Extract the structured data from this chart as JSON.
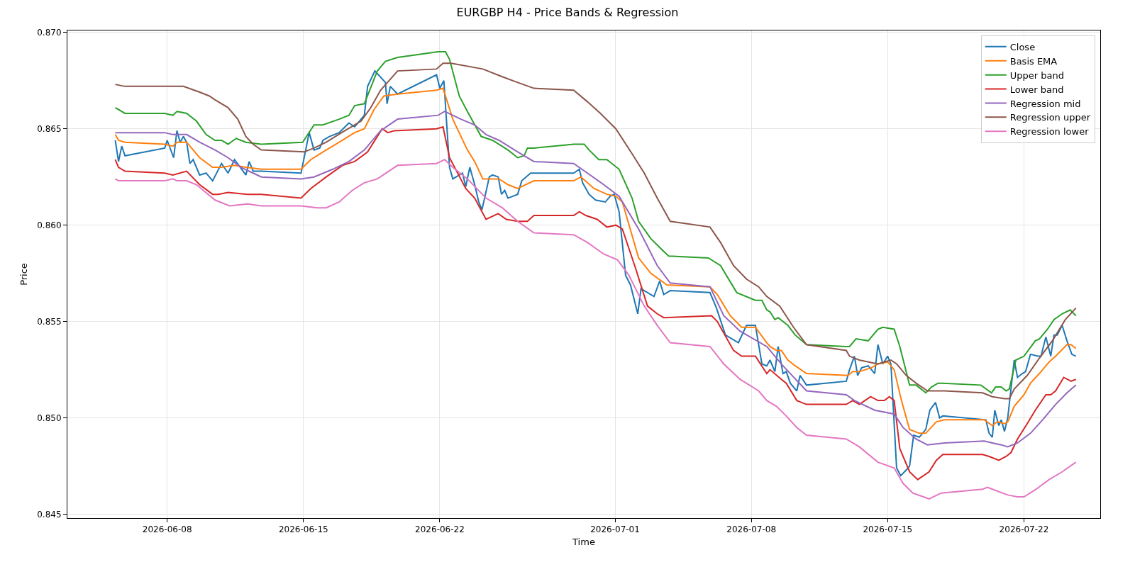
{
  "chart_data": {
    "type": "line",
    "title": "EURGBP H4 - Price Bands & Regression",
    "xlabel": "Time",
    "ylabel": "Price",
    "xlim": [
      "2026-06-02T21:00",
      "2026-07-25T22:00"
    ],
    "xticks": [
      "2026-06-08",
      "2026-06-15",
      "2026-06-22",
      "2026-07-01",
      "2026-07-08",
      "2026-07-15",
      "2026-07-22"
    ],
    "ylim": [
      0.8448,
      0.8701
    ],
    "yticks": [
      {
        "value": 0.845,
        "label": "0.845"
      },
      {
        "value": 0.85,
        "label": "0.850"
      },
      {
        "value": 0.855,
        "label": "0.855"
      },
      {
        "value": 0.86,
        "label": "0.860"
      },
      {
        "value": 0.865,
        "label": "0.865"
      },
      {
        "value": 0.87,
        "label": "0.870"
      }
    ],
    "grid": true,
    "legend": "top right",
    "series": [
      {
        "name": "Close",
        "color": "#1f77b4",
        "x": [
          "2026-06-05T08:00",
          "2026-06-05T12:00",
          "2026-06-05T16:00",
          "2026-06-05T20:00",
          "2026-06-07T21:00",
          "2026-06-08T00:00",
          "2026-06-08T08:00",
          "2026-06-08T12:00",
          "2026-06-08T16:00",
          "2026-06-08T20:00",
          "2026-06-09T00:00",
          "2026-06-09T04:00",
          "2026-06-09T08:00",
          "2026-06-09T16:00",
          "2026-06-10T00:00",
          "2026-06-10T08:00",
          "2026-06-10T19:00",
          "2026-06-11T03:00",
          "2026-06-11T11:00",
          "2026-06-12T01:00",
          "2026-06-12T05:00",
          "2026-06-12T10:00",
          "2026-06-12T20:00",
          "2026-06-14T21:00",
          "2026-06-15T07:00",
          "2026-06-15T13:00",
          "2026-06-15T20:00",
          "2026-06-16T00:00",
          "2026-06-16T08:00",
          "2026-06-16T20:00",
          "2026-06-17T08:00",
          "2026-06-17T15:00",
          "2026-06-18T03:00",
          "2026-06-18T07:00",
          "2026-06-18T16:00",
          "2026-06-19T05:00",
          "2026-06-19T07:00",
          "2026-06-19T11:00",
          "2026-06-19T20:00",
          "2026-06-21T20:00",
          "2026-06-22T00:00",
          "2026-06-22T05:00",
          "2026-06-22T12:00",
          "2026-06-22T16:00",
          "2026-06-23T04:00",
          "2026-06-23T08:00",
          "2026-06-23T13:00",
          "2026-06-23T19:00",
          "2026-06-24T00:00",
          "2026-06-24T04:00",
          "2026-06-24T13:00",
          "2026-06-24T17:00",
          "2026-06-25T00:00",
          "2026-06-25T04:00",
          "2026-06-25T08:00",
          "2026-06-25T12:00",
          "2026-06-26T00:00",
          "2026-06-26T05:00",
          "2026-06-26T16:00",
          "2026-06-28T21:00",
          "2026-06-29T04:00",
          "2026-06-29T08:00",
          "2026-06-29T16:00",
          "2026-06-30T00:00",
          "2026-06-30T12:00",
          "2026-06-30T18:00",
          "2026-06-30T23:00",
          "2026-07-01T05:00",
          "2026-07-01T13:00",
          "2026-07-01T19:00",
          "2026-07-02T04:00",
          "2026-07-02T08:00",
          "2026-07-03T00:00",
          "2026-07-03T07:00",
          "2026-07-03T12:00",
          "2026-07-03T20:00",
          "2026-07-05T21:00",
          "2026-07-06T05:00",
          "2026-07-06T16:00",
          "2026-07-07T08:00",
          "2026-07-07T18:00",
          "2026-07-08T05:00",
          "2026-07-08T13:00",
          "2026-07-08T19:00",
          "2026-07-08T23:00",
          "2026-07-09T05:00",
          "2026-07-09T09:00",
          "2026-07-09T15:00",
          "2026-07-09T19:00",
          "2026-07-10T00:00",
          "2026-07-10T08:00",
          "2026-07-10T12:00",
          "2026-07-10T20:00",
          "2026-07-12T21:00",
          "2026-07-13T01:00",
          "2026-07-13T07:00",
          "2026-07-13T11:00",
          "2026-07-13T16:00",
          "2026-07-14T00:00",
          "2026-07-14T08:00",
          "2026-07-14T12:00",
          "2026-07-14T18:00",
          "2026-07-15T00:00",
          "2026-07-15T04:00",
          "2026-07-15T11:00",
          "2026-07-15T16:00",
          "2026-07-15T23:00",
          "2026-07-16T03:00",
          "2026-07-16T08:00",
          "2026-07-16T15:00",
          "2026-07-16T23:00",
          "2026-07-17T04:00",
          "2026-07-17T11:00",
          "2026-07-17T16:00",
          "2026-07-17T20:00",
          "2026-07-20T01:00",
          "2026-07-20T05:00",
          "2026-07-20T09:00",
          "2026-07-20T12:00",
          "2026-07-20T17:00",
          "2026-07-20T20:00",
          "2026-07-21T00:00",
          "2026-07-21T04:00",
          "2026-07-21T12:00",
          "2026-07-21T16:00",
          "2026-07-21T22:00",
          "2026-07-22T02:00",
          "2026-07-22T08:00",
          "2026-07-22T17:00",
          "2026-07-22T21:00",
          "2026-07-23T03:00",
          "2026-07-23T09:00",
          "2026-07-23T13:00",
          "2026-07-23T17:00",
          "2026-07-23T23:00",
          "2026-07-24T05:00",
          "2026-07-24T11:00",
          "2026-07-24T16:00"
        ],
        "values": [
          0.8644,
          0.8633,
          0.8641,
          0.8636,
          0.864,
          0.8644,
          0.8635,
          0.8649,
          0.8643,
          0.8646,
          0.8643,
          0.8632,
          0.8634,
          0.8626,
          0.8627,
          0.8623,
          0.8632,
          0.8627,
          0.8634,
          0.8626,
          0.8633,
          0.8628,
          0.8628,
          0.8627,
          0.8648,
          0.8639,
          0.864,
          0.8644,
          0.8646,
          0.8648,
          0.8653,
          0.8651,
          0.8657,
          0.8672,
          0.868,
          0.8674,
          0.8663,
          0.8672,
          0.8668,
          0.8678,
          0.8671,
          0.8675,
          0.863,
          0.8624,
          0.8627,
          0.862,
          0.863,
          0.8621,
          0.8612,
          0.8608,
          0.8625,
          0.8626,
          0.8625,
          0.8616,
          0.8618,
          0.8614,
          0.8616,
          0.8623,
          0.8627,
          0.8627,
          0.8629,
          0.8622,
          0.8616,
          0.8613,
          0.8612,
          0.8615,
          0.8616,
          0.8607,
          0.8574,
          0.8569,
          0.8554,
          0.8567,
          0.8563,
          0.8571,
          0.8564,
          0.8566,
          0.8565,
          0.8557,
          0.8543,
          0.8539,
          0.8548,
          0.8548,
          0.8528,
          0.8527,
          0.853,
          0.8524,
          0.8537,
          0.8523,
          0.8524,
          0.8518,
          0.8514,
          0.8522,
          0.8517,
          0.8519,
          0.8525,
          0.8532,
          0.8522,
          0.8526,
          0.8527,
          0.8523,
          0.8538,
          0.8528,
          0.8532,
          0.8528,
          0.8474,
          0.847,
          0.8473,
          0.8475,
          0.8491,
          0.849,
          0.8494,
          0.8504,
          0.8508,
          0.85,
          0.8501,
          0.8499,
          0.8492,
          0.849,
          0.8504,
          0.8496,
          0.8499,
          0.8493,
          0.85,
          0.853,
          0.8521,
          0.8523,
          0.8524,
          0.8533,
          0.8532,
          0.8532,
          0.8542,
          0.8532,
          0.8543,
          0.8543,
          0.8548,
          0.854,
          0.8533,
          0.8532
        ]
      },
      {
        "name": "Basis EMA",
        "color": "#ff7f0e",
        "x": [
          "2026-06-05T08:00",
          "2026-06-05T12:00",
          "2026-06-05T20:00",
          "2026-06-07T21:00",
          "2026-06-08T07:00",
          "2026-06-08T12:00",
          "2026-06-09T00:00",
          "2026-06-09T16:00",
          "2026-06-10T08:00",
          "2026-06-10T19:00",
          "2026-06-11T11:00",
          "2026-06-12T01:00",
          "2026-06-12T20:00",
          "2026-06-14T21:00",
          "2026-06-15T09:00",
          "2026-06-16T00:00",
          "2026-06-16T20:00",
          "2026-06-17T15:00",
          "2026-06-18T03:00",
          "2026-06-18T15:00",
          "2026-06-19T03:00",
          "2026-06-19T20:00",
          "2026-06-21T20:00",
          "2026-06-22T04:00",
          "2026-06-22T16:00",
          "2026-06-23T10:00",
          "2026-06-23T19:00",
          "2026-06-24T05:00",
          "2026-06-25T01:00",
          "2026-06-25T12:00",
          "2026-06-26T00:00",
          "2026-06-26T20:00",
          "2026-06-28T21:00",
          "2026-06-29T06:00",
          "2026-06-29T22:00",
          "2026-06-30T14:00",
          "2026-07-01T01:00",
          "2026-07-01T09:00",
          "2026-07-02T05:00",
          "2026-07-02T20:00",
          "2026-07-03T16:00",
          "2026-07-05T21:00",
          "2026-07-06T06:00",
          "2026-07-06T22:00",
          "2026-07-07T12:00",
          "2026-07-08T05:00",
          "2026-07-08T19:00",
          "2026-07-08T23:00",
          "2026-07-09T07:00",
          "2026-07-09T13:00",
          "2026-07-09T21:00",
          "2026-07-10T06:00",
          "2026-07-10T20:00",
          "2026-07-12T23:00",
          "2026-07-13T05:00",
          "2026-07-13T13:00",
          "2026-07-14T04:00",
          "2026-07-14T12:00",
          "2026-07-15T00:00",
          "2026-07-15T08:00",
          "2026-07-15T17:00",
          "2026-07-16T03:00",
          "2026-07-16T15:00",
          "2026-07-16T23:00",
          "2026-07-17T12:00",
          "2026-07-17T22:00",
          "2026-07-19T23:00",
          "2026-07-20T09:00",
          "2026-07-20T15:00",
          "2026-07-21T00:00",
          "2026-07-21T04:00",
          "2026-07-21T12:00",
          "2026-07-22T00:00",
          "2026-07-22T08:00",
          "2026-07-22T19:00",
          "2026-07-23T07:00",
          "2026-07-23T15:00",
          "2026-07-24T05:00",
          "2026-07-24T10:00",
          "2026-07-24T16:00"
        ],
        "values": [
          0.8647,
          0.8644,
          0.8643,
          0.8642,
          0.8641,
          0.8643,
          0.8643,
          0.8635,
          0.863,
          0.863,
          0.8631,
          0.863,
          0.8629,
          0.8629,
          0.8634,
          0.8638,
          0.8643,
          0.8648,
          0.865,
          0.866,
          0.8667,
          0.8668,
          0.867,
          0.8671,
          0.8655,
          0.8639,
          0.8633,
          0.8624,
          0.8624,
          0.8621,
          0.8619,
          0.8623,
          0.8623,
          0.8625,
          0.8619,
          0.8616,
          0.8615,
          0.8612,
          0.8583,
          0.8575,
          0.8569,
          0.8568,
          0.8564,
          0.8553,
          0.8547,
          0.8547,
          0.8539,
          0.8537,
          0.8535,
          0.8535,
          0.853,
          0.8527,
          0.8523,
          0.8522,
          0.8524,
          0.8524,
          0.8526,
          0.8528,
          0.8529,
          0.8525,
          0.8509,
          0.8494,
          0.8492,
          0.8492,
          0.8498,
          0.8499,
          0.8499,
          0.8496,
          0.8498,
          0.8497,
          0.8498,
          0.8506,
          0.8512,
          0.8518,
          0.8523,
          0.8529,
          0.8532,
          0.8538,
          0.8538,
          0.8536
        ]
      },
      {
        "name": "Upper band",
        "color": "#2ca02c",
        "x": [
          "2026-06-05T08:00",
          "2026-06-05T20:00",
          "2026-06-07T21:00",
          "2026-06-08T07:00",
          "2026-06-08T12:00",
          "2026-06-09T00:00",
          "2026-06-09T12:00",
          "2026-06-10T00:00",
          "2026-06-10T11:00",
          "2026-06-10T19:00",
          "2026-06-11T03:00",
          "2026-06-11T13:00",
          "2026-06-12T01:00",
          "2026-06-12T20:00",
          "2026-06-14T23:00",
          "2026-06-15T13:00",
          "2026-06-16T00:00",
          "2026-06-16T20:00",
          "2026-06-17T08:00",
          "2026-06-17T15:00",
          "2026-06-18T03:00",
          "2026-06-18T19:00",
          "2026-06-19T05:00",
          "2026-06-19T20:00",
          "2026-06-21T22:00",
          "2026-06-22T07:00",
          "2026-06-22T12:00",
          "2026-06-23T00:00",
          "2026-06-23T10:00",
          "2026-06-24T03:00",
          "2026-06-24T17:00",
          "2026-06-25T12:00",
          "2026-06-26T00:00",
          "2026-06-26T08:00",
          "2026-06-26T12:00",
          "2026-06-26T20:00",
          "2026-06-28T21:00",
          "2026-06-29T10:00",
          "2026-06-29T16:00",
          "2026-06-30T04:00",
          "2026-06-30T14:00",
          "2026-07-01T05:00",
          "2026-07-01T21:00",
          "2026-07-02T05:00",
          "2026-07-02T20:00",
          "2026-07-03T08:00",
          "2026-07-03T18:00",
          "2026-07-05T19:00",
          "2026-07-06T10:00",
          "2026-07-07T06:00",
          "2026-07-08T05:00",
          "2026-07-08T13:00",
          "2026-07-08T19:00",
          "2026-07-08T23:00",
          "2026-07-09T05:00",
          "2026-07-09T09:00",
          "2026-07-09T21:00",
          "2026-07-10T06:00",
          "2026-07-10T20:00",
          "2026-07-12T21:00",
          "2026-07-13T01:00",
          "2026-07-13T09:00",
          "2026-07-14T00:00",
          "2026-07-14T12:00",
          "2026-07-14T18:00",
          "2026-07-15T08:00",
          "2026-07-15T15:00",
          "2026-07-16T03:00",
          "2026-07-16T11:00",
          "2026-07-16T23:00",
          "2026-07-17T06:00",
          "2026-07-17T14:00",
          "2026-07-17T20:00",
          "2026-07-19T19:00",
          "2026-07-20T08:00",
          "2026-07-20T13:00",
          "2026-07-20T20:00",
          "2026-07-21T02:00",
          "2026-07-21T06:00",
          "2026-07-21T14:00",
          "2026-07-22T00:00",
          "2026-07-22T14:00",
          "2026-07-22T19:00",
          "2026-07-23T05:00",
          "2026-07-23T13:00",
          "2026-07-23T23:00",
          "2026-07-24T09:00",
          "2026-07-24T16:00"
        ],
        "values": [
          0.8661,
          0.8658,
          0.8658,
          0.8657,
          0.8659,
          0.8658,
          0.8654,
          0.8647,
          0.8644,
          0.8644,
          0.8642,
          0.8645,
          0.8643,
          0.8642,
          0.8643,
          0.8652,
          0.8652,
          0.8655,
          0.8657,
          0.8662,
          0.8663,
          0.868,
          0.8685,
          0.8687,
          0.869,
          0.869,
          0.8686,
          0.8667,
          0.8659,
          0.8646,
          0.8644,
          0.8639,
          0.8635,
          0.8636,
          0.864,
          0.864,
          0.8642,
          0.8642,
          0.8639,
          0.8634,
          0.8634,
          0.8629,
          0.8614,
          0.8602,
          0.8593,
          0.8588,
          0.8584,
          0.8583,
          0.8579,
          0.8565,
          0.8561,
          0.8561,
          0.8556,
          0.8555,
          0.8551,
          0.8552,
          0.8548,
          0.8543,
          0.8538,
          0.8537,
          0.8537,
          0.8541,
          0.854,
          0.8546,
          0.8547,
          0.8546,
          0.8537,
          0.8517,
          0.8517,
          0.8513,
          0.8516,
          0.8518,
          0.8518,
          0.8517,
          0.8513,
          0.8516,
          0.8516,
          0.8514,
          0.8515,
          0.853,
          0.8532,
          0.854,
          0.8541,
          0.8546,
          0.8551,
          0.8554,
          0.8556,
          0.8553
        ]
      },
      {
        "name": "Lower band",
        "color": "#d62728",
        "x": [
          "2026-06-05T08:00",
          "2026-06-05T12:00",
          "2026-06-05T20:00",
          "2026-06-07T21:00",
          "2026-06-08T07:00",
          "2026-06-09T00:00",
          "2026-06-09T16:00",
          "2026-06-10T08:00",
          "2026-06-10T15:00",
          "2026-06-11T03:00",
          "2026-06-12T03:00",
          "2026-06-12T20:00",
          "2026-06-14T21:00",
          "2026-06-15T09:00",
          "2026-06-16T04:00",
          "2026-06-17T00:00",
          "2026-06-17T15:00",
          "2026-06-18T07:00",
          "2026-06-19T01:00",
          "2026-06-19T08:00",
          "2026-06-19T16:00",
          "2026-06-21T20:00",
          "2026-06-22T04:00",
          "2026-06-22T12:00",
          "2026-06-23T08:00",
          "2026-06-23T19:00",
          "2026-06-24T09:00",
          "2026-06-25T00:00",
          "2026-06-25T10:00",
          "2026-06-26T00:00",
          "2026-06-26T12:00",
          "2026-06-26T20:00",
          "2026-06-28T21:00",
          "2026-06-29T04:00",
          "2026-06-29T12:00",
          "2026-06-30T02:00",
          "2026-06-30T14:00",
          "2026-07-01T01:00",
          "2026-07-01T09:00",
          "2026-07-02T01:00",
          "2026-07-02T16:00",
          "2026-07-03T04:00",
          "2026-07-03T12:00",
          "2026-07-05T23:00",
          "2026-07-06T06:00",
          "2026-07-07T02:00",
          "2026-07-07T12:00",
          "2026-07-08T05:00",
          "2026-07-08T19:00",
          "2026-07-08T23:00",
          "2026-07-09T13:00",
          "2026-07-09T19:00",
          "2026-07-10T08:00",
          "2026-07-10T20:00",
          "2026-07-12T21:00",
          "2026-07-13T05:00",
          "2026-07-13T13:00",
          "2026-07-13T20:00",
          "2026-07-14T03:00",
          "2026-07-14T12:00",
          "2026-07-14T20:00",
          "2026-07-15T02:00",
          "2026-07-15T08:00",
          "2026-07-15T15:00",
          "2026-07-16T03:00",
          "2026-07-16T13:00",
          "2026-07-17T03:00",
          "2026-07-17T12:00",
          "2026-07-17T20:00",
          "2026-07-19T21:00",
          "2026-07-20T05:00",
          "2026-07-20T17:00",
          "2026-07-21T02:00",
          "2026-07-21T08:00",
          "2026-07-21T16:00",
          "2026-07-22T04:00",
          "2026-07-22T14:00",
          "2026-07-23T03:00",
          "2026-07-23T09:00",
          "2026-07-23T15:00",
          "2026-07-24T01:00",
          "2026-07-24T10:00",
          "2026-07-24T16:00"
        ],
        "values": [
          0.8634,
          0.863,
          0.8628,
          0.8627,
          0.8626,
          0.8628,
          0.8621,
          0.8616,
          0.8616,
          0.8617,
          0.8616,
          0.8616,
          0.8614,
          0.8619,
          0.8625,
          0.8631,
          0.8633,
          0.8638,
          0.865,
          0.8648,
          0.8649,
          0.865,
          0.8651,
          0.8635,
          0.8619,
          0.8614,
          0.8603,
          0.8606,
          0.8603,
          0.8602,
          0.8602,
          0.8605,
          0.8605,
          0.8607,
          0.8605,
          0.8603,
          0.8599,
          0.86,
          0.8598,
          0.8578,
          0.8558,
          0.8554,
          0.8552,
          0.8553,
          0.855,
          0.8535,
          0.8532,
          0.8532,
          0.8523,
          0.8525,
          0.852,
          0.8518,
          0.8509,
          0.8507,
          0.8507,
          0.8509,
          0.8507,
          0.8509,
          0.8511,
          0.8509,
          0.8509,
          0.8511,
          0.8509,
          0.8484,
          0.8472,
          0.8468,
          0.8472,
          0.8478,
          0.8481,
          0.8481,
          0.848,
          0.8478,
          0.848,
          0.8482,
          0.8489,
          0.8497,
          0.8504,
          0.8512,
          0.8512,
          0.8514,
          0.8521,
          0.8519,
          0.852
        ]
      },
      {
        "name": "Regression mid",
        "color": "#9467bd",
        "x": [
          "2026-06-05T08:00",
          "2026-06-05T20:00",
          "2026-06-07T21:00",
          "2026-06-08T07:00",
          "2026-06-09T00:00",
          "2026-06-09T16:00",
          "2026-06-10T11:00",
          "2026-06-11T03:00",
          "2026-06-11T19:00",
          "2026-06-12T10:00",
          "2026-06-12T20:00",
          "2026-06-14T21:00",
          "2026-06-15T13:00",
          "2026-06-16T12:00",
          "2026-06-17T08:00",
          "2026-06-18T03:00",
          "2026-06-18T23:00",
          "2026-06-19T20:00",
          "2026-06-21T22:00",
          "2026-06-22T06:00",
          "2026-06-23T02:00",
          "2026-06-23T19:00",
          "2026-06-24T09:00",
          "2026-06-25T01:00",
          "2026-06-26T00:00",
          "2026-06-26T20:00",
          "2026-06-28T21:00",
          "2026-06-29T14:00",
          "2026-06-30T10:00",
          "2026-07-01T05:00",
          "2026-07-02T05:00",
          "2026-07-03T04:00",
          "2026-07-03T20:00",
          "2026-07-05T21:00",
          "2026-07-06T14:00",
          "2026-07-07T10:00",
          "2026-07-08T19:00",
          "2026-07-09T15:00",
          "2026-07-10T20:00",
          "2026-07-12T21:00",
          "2026-07-13T07:00",
          "2026-07-14T08:00",
          "2026-07-15T08:00",
          "2026-07-15T19:00",
          "2026-07-16T11:00",
          "2026-07-17T01:00",
          "2026-07-17T22:00",
          "2026-07-19T23:00",
          "2026-07-20T09:00",
          "2026-07-20T20:00",
          "2026-07-21T04:00",
          "2026-07-21T16:00",
          "2026-07-22T08:00",
          "2026-07-22T23:00",
          "2026-07-23T15:00",
          "2026-07-24T05:00",
          "2026-07-24T16:00"
        ],
        "values": [
          0.8648,
          0.8648,
          0.8648,
          0.8647,
          0.8647,
          0.8643,
          0.8639,
          0.8635,
          0.863,
          0.8627,
          0.8625,
          0.8624,
          0.8625,
          0.8629,
          0.8633,
          0.8639,
          0.8649,
          0.8655,
          0.8657,
          0.8659,
          0.8655,
          0.8652,
          0.8647,
          0.8644,
          0.8638,
          0.8633,
          0.8632,
          0.8627,
          0.8621,
          0.8615,
          0.8598,
          0.8579,
          0.857,
          0.8568,
          0.8553,
          0.8545,
          0.8537,
          0.8527,
          0.8514,
          0.8512,
          0.8509,
          0.8504,
          0.8502,
          0.8495,
          0.8489,
          0.8486,
          0.8487,
          0.8488,
          0.8487,
          0.8486,
          0.8485,
          0.8487,
          0.8492,
          0.8499,
          0.8507,
          0.8513,
          0.8517
        ]
      },
      {
        "name": "Regression upper",
        "color": "#8c564b",
        "x": [
          "2026-06-05T08:00",
          "2026-06-05T20:00",
          "2026-06-07T21:00",
          "2026-06-08T07:00",
          "2026-06-08T20:00",
          "2026-06-09T16:00",
          "2026-06-10T04:00",
          "2026-06-10T11:00",
          "2026-06-11T03:00",
          "2026-06-11T15:00",
          "2026-06-12T01:00",
          "2026-06-12T10:00",
          "2026-06-12T20:00",
          "2026-06-15T01:00",
          "2026-06-15T13:00",
          "2026-06-16T04:00",
          "2026-06-16T23:00",
          "2026-06-17T23:00",
          "2026-06-18T11:00",
          "2026-06-18T23:00",
          "2026-06-19T20:00",
          "2026-06-21T20:00",
          "2026-06-22T04:00",
          "2026-06-22T14:00",
          "2026-06-24T05:00",
          "2026-06-25T05:00",
          "2026-06-26T00:00",
          "2026-06-26T20:00",
          "2026-06-28T21:00",
          "2026-06-29T14:00",
          "2026-06-30T06:00",
          "2026-07-01T01:00",
          "2026-07-01T21:00",
          "2026-07-02T12:00",
          "2026-07-03T04:00",
          "2026-07-03T20:00",
          "2026-07-05T21:00",
          "2026-07-06T10:00",
          "2026-07-07T02:00",
          "2026-07-07T18:00",
          "2026-07-08T09:00",
          "2026-07-08T19:00",
          "2026-07-09T11:00",
          "2026-07-10T04:00",
          "2026-07-10T20:00",
          "2026-07-12T21:00",
          "2026-07-13T01:00",
          "2026-07-13T13:00",
          "2026-07-14T12:00",
          "2026-07-15T04:00",
          "2026-07-15T11:00",
          "2026-07-15T23:00",
          "2026-07-16T11:00",
          "2026-07-17T01:00",
          "2026-07-17T22:00",
          "2026-07-19T21:00",
          "2026-07-20T09:00",
          "2026-07-21T00:00",
          "2026-07-21T06:00",
          "2026-07-21T12:00",
          "2026-07-22T04:00",
          "2026-07-22T19:00",
          "2026-07-23T11:00",
          "2026-07-24T03:00",
          "2026-07-24T16:00"
        ],
        "values": [
          0.8673,
          0.8672,
          0.8672,
          0.8672,
          0.8672,
          0.8669,
          0.8667,
          0.8665,
          0.8661,
          0.8655,
          0.8646,
          0.8642,
          0.8639,
          0.8638,
          0.864,
          0.8643,
          0.8648,
          0.8654,
          0.8661,
          0.867,
          0.868,
          0.8681,
          0.8684,
          0.8684,
          0.8681,
          0.8677,
          0.8674,
          0.8671,
          0.867,
          0.8664,
          0.8658,
          0.865,
          0.8637,
          0.8627,
          0.8614,
          0.8602,
          0.8599,
          0.8591,
          0.8579,
          0.8572,
          0.8568,
          0.8563,
          0.8558,
          0.8547,
          0.8538,
          0.8535,
          0.8532,
          0.853,
          0.8528,
          0.853,
          0.8528,
          0.8522,
          0.8518,
          0.8514,
          0.8514,
          0.8513,
          0.8511,
          0.851,
          0.851,
          0.8515,
          0.8522,
          0.8531,
          0.854,
          0.8551,
          0.8557
        ]
      },
      {
        "name": "Regression lower",
        "color": "#e377c2",
        "x": [
          "2026-06-05T08:00",
          "2026-06-05T12:00",
          "2026-06-07T21:00",
          "2026-06-08T07:00",
          "2026-06-08T12:00",
          "2026-06-09T00:00",
          "2026-06-09T12:00",
          "2026-06-10T11:00",
          "2026-06-11T05:00",
          "2026-06-12T03:00",
          "2026-06-12T20:00",
          "2026-06-14T21:00",
          "2026-06-15T17:00",
          "2026-06-16T04:00",
          "2026-06-16T20:00",
          "2026-06-17T12:00",
          "2026-06-18T03:00",
          "2026-06-18T19:00",
          "2026-06-19T20:00",
          "2026-06-21T20:00",
          "2026-06-22T06:00",
          "2026-06-22T16:00",
          "2026-06-23T10:00",
          "2026-06-24T09:00",
          "2026-06-25T05:00",
          "2026-06-26T00:00",
          "2026-06-26T20:00",
          "2026-06-28T21:00",
          "2026-06-29T14:00",
          "2026-06-30T10:00",
          "2026-07-01T03:00",
          "2026-07-01T17:00",
          "2026-07-02T12:00",
          "2026-07-03T04:00",
          "2026-07-03T20:00",
          "2026-07-05T21:00",
          "2026-07-06T14:00",
          "2026-07-07T10:00",
          "2026-07-08T09:00",
          "2026-07-08T19:00",
          "2026-07-09T07:00",
          "2026-07-09T19:00",
          "2026-07-10T08:00",
          "2026-07-10T20:00",
          "2026-07-12T21:00",
          "2026-07-13T13:00",
          "2026-07-14T12:00",
          "2026-07-15T08:00",
          "2026-07-15T19:00",
          "2026-07-16T07:00",
          "2026-07-17T03:00",
          "2026-07-17T18:00",
          "2026-07-19T21:00",
          "2026-07-20T03:00",
          "2026-07-20T09:00",
          "2026-07-21T04:00",
          "2026-07-21T16:00",
          "2026-07-22T00:00",
          "2026-07-22T15:00",
          "2026-07-23T07:00",
          "2026-07-23T23:00",
          "2026-07-24T16:00"
        ],
        "values": [
          0.8624,
          0.8623,
          0.8623,
          0.8624,
          0.8623,
          0.8623,
          0.8621,
          0.8613,
          0.861,
          0.8611,
          0.861,
          0.861,
          0.8609,
          0.8609,
          0.8612,
          0.8618,
          0.8622,
          0.8624,
          0.8631,
          0.8632,
          0.8634,
          0.863,
          0.8624,
          0.8614,
          0.8609,
          0.8602,
          0.8596,
          0.8595,
          0.8591,
          0.8585,
          0.8582,
          0.8574,
          0.8558,
          0.8548,
          0.8539,
          0.8537,
          0.8528,
          0.852,
          0.8514,
          0.8509,
          0.8506,
          0.8501,
          0.8495,
          0.8491,
          0.8489,
          0.8485,
          0.8477,
          0.8474,
          0.8466,
          0.8461,
          0.8458,
          0.8461,
          0.8463,
          0.8464,
          0.8463,
          0.846,
          0.8459,
          0.8459,
          0.8463,
          0.8468,
          0.8472,
          0.8477
        ]
      }
    ]
  }
}
